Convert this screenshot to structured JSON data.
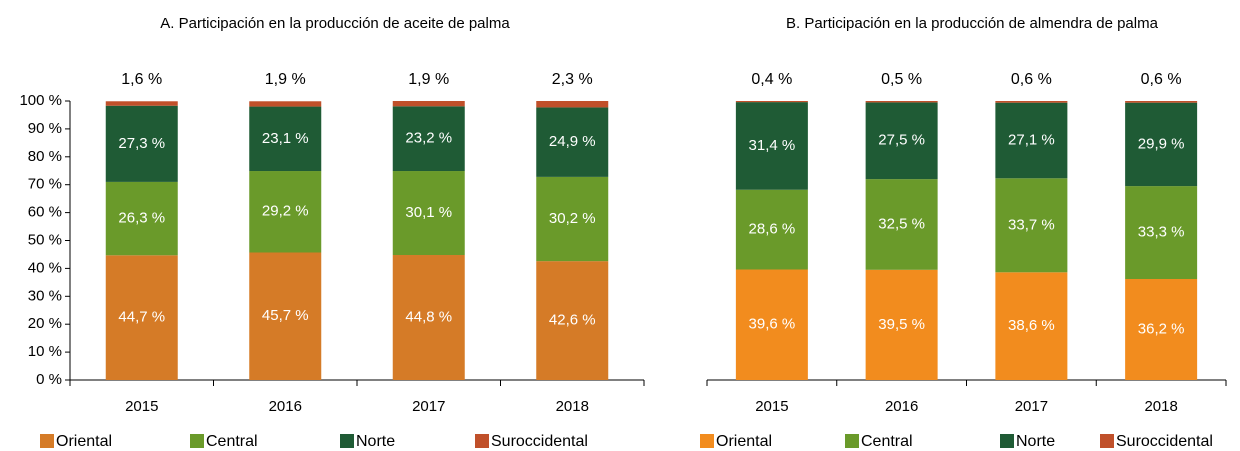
{
  "chart_data": [
    {
      "type": "bar",
      "stacked": true,
      "title": "A. Participación en la producción de aceite de palma",
      "categories": [
        "2015",
        "2016",
        "2017",
        "2018"
      ],
      "series": [
        {
          "name": "Oriental",
          "color": "#d57b27",
          "values": [
            44.7,
            45.7,
            44.8,
            42.6
          ],
          "value_labels": [
            "44,7 %",
            "45,7 %",
            "44,8 %",
            "42,6 %"
          ]
        },
        {
          "name": "Central",
          "color": "#6a9a2a",
          "values": [
            26.3,
            29.2,
            30.1,
            30.2
          ],
          "value_labels": [
            "26,3 %",
            "29,2 %",
            "30,1 %",
            "30,2 %"
          ]
        },
        {
          "name": "Norte",
          "color": "#1f5b35",
          "values": [
            27.3,
            23.1,
            23.2,
            24.9
          ],
          "value_labels": [
            "27,3 %",
            "23,1 %",
            "23,2 %",
            "24,9 %"
          ]
        },
        {
          "name": "Suroccidental",
          "color": "#c0502a",
          "values": [
            1.6,
            1.9,
            1.9,
            2.3
          ],
          "value_labels": [
            "1,6 %",
            "1,9 %",
            "1,9 %",
            "2,3 %"
          ]
        }
      ],
      "ylim": [
        0,
        100
      ],
      "yticks": [
        {
          "value": 0,
          "label": "0 %"
        },
        {
          "value": 10,
          "label": "10 %"
        },
        {
          "value": 20,
          "label": "20 %"
        },
        {
          "value": 30,
          "label": "30 %"
        },
        {
          "value": 40,
          "label": "40 %"
        },
        {
          "value": 50,
          "label": "50 %"
        },
        {
          "value": 60,
          "label": "60 %"
        },
        {
          "value": 70,
          "label": "70 %"
        },
        {
          "value": 80,
          "label": "80 %"
        },
        {
          "value": 90,
          "label": "90 %"
        },
        {
          "value": 100,
          "label": "100 %"
        }
      ]
    },
    {
      "type": "bar",
      "stacked": true,
      "title": "B. Participación en la producción de almendra de palma",
      "categories": [
        "2015",
        "2016",
        "2017",
        "2018"
      ],
      "series": [
        {
          "name": "Oriental",
          "color": "#f28c1e",
          "values": [
            39.6,
            39.5,
            38.6,
            36.2
          ],
          "value_labels": [
            "39,6 %",
            "39,5 %",
            "38,6 %",
            "36,2 %"
          ]
        },
        {
          "name": "Central",
          "color": "#6a9a2a",
          "values": [
            28.6,
            32.5,
            33.7,
            33.3
          ],
          "value_labels": [
            "28,6 %",
            "32,5 %",
            "33,7 %",
            "33,3 %"
          ]
        },
        {
          "name": "Norte",
          "color": "#1f5b35",
          "values": [
            31.4,
            27.5,
            27.1,
            29.9
          ],
          "value_labels": [
            "31,4 %",
            "27,5 %",
            "27,1 %",
            "29,9 %"
          ]
        },
        {
          "name": "Suroccidental",
          "color": "#c0502a",
          "values": [
            0.4,
            0.5,
            0.6,
            0.6
          ],
          "value_labels": [
            "0,4 %",
            "0,5 %",
            "0,6 %",
            "0,6 %"
          ]
        }
      ],
      "ylim": [
        0,
        100
      ]
    }
  ]
}
